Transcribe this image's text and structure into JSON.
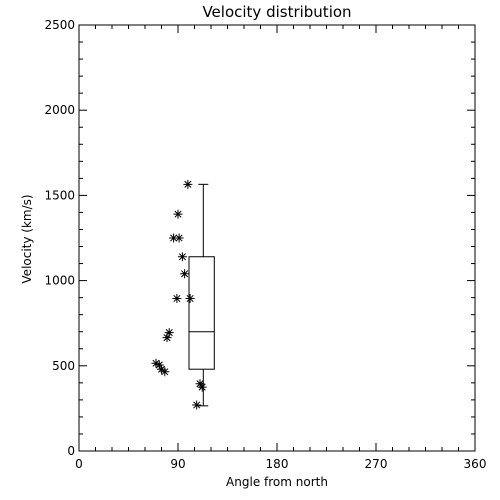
{
  "chart_data": {
    "type": "scatter",
    "title": "Velocity distribution",
    "xlabel": "Angle from north",
    "ylabel": "Velocity (km/s)",
    "xlim": [
      0,
      360
    ],
    "ylim": [
      0,
      2500
    ],
    "xticks": [
      0,
      90,
      180,
      270,
      360
    ],
    "xtick_labels": [
      "0",
      "90",
      "180",
      "270",
      "360"
    ],
    "yticks": [
      0,
      500,
      1000,
      1500,
      2000,
      2500
    ],
    "ytick_labels": [
      "0",
      "500",
      "1000",
      "1500",
      "2000",
      "2500"
    ],
    "grid": false,
    "legend": "none",
    "marker": "asterisk",
    "points": [
      {
        "x": 99,
        "y": 1565
      },
      {
        "x": 90,
        "y": 1390
      },
      {
        "x": 86,
        "y": 1250
      },
      {
        "x": 91,
        "y": 1250
      },
      {
        "x": 94,
        "y": 1140
      },
      {
        "x": 96,
        "y": 1040
      },
      {
        "x": 89,
        "y": 895
      },
      {
        "x": 101,
        "y": 895
      },
      {
        "x": 82,
        "y": 695
      },
      {
        "x": 80,
        "y": 665
      },
      {
        "x": 70,
        "y": 515
      },
      {
        "x": 73,
        "y": 505
      },
      {
        "x": 75,
        "y": 480
      },
      {
        "x": 78,
        "y": 465
      },
      {
        "x": 110,
        "y": 395
      },
      {
        "x": 112,
        "y": 375
      },
      {
        "x": 107,
        "y": 270
      }
    ],
    "boxplot": {
      "x_left": 100,
      "x_right": 123,
      "whisker_x": 113,
      "min": 265,
      "q1": 480,
      "median": 700,
      "q3": 1140,
      "max": 1565
    }
  }
}
